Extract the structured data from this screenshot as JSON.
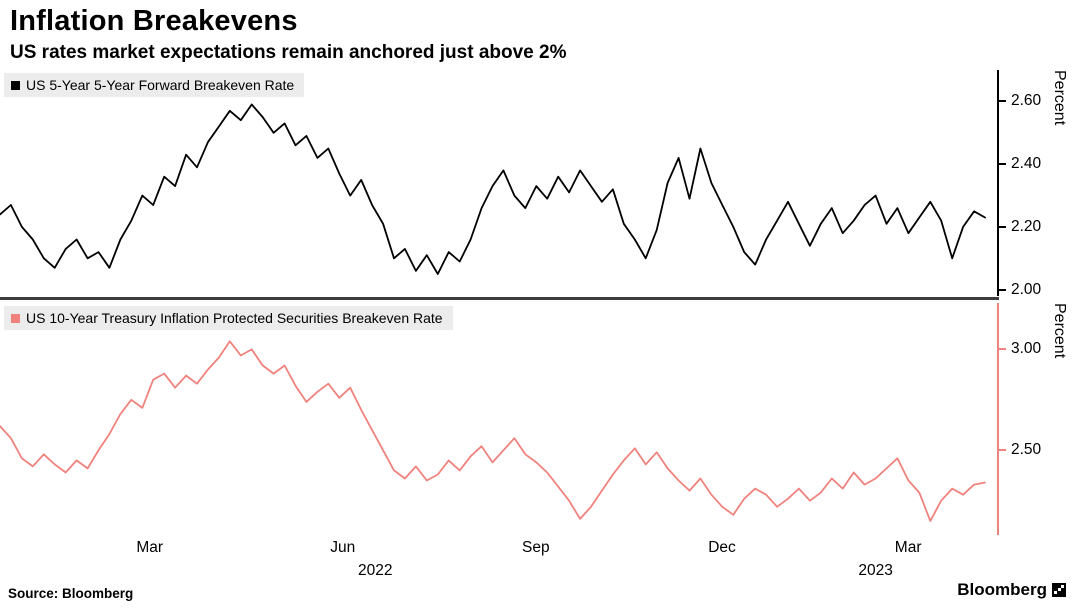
{
  "header": {
    "title": "Inflation Breakevens",
    "subtitle": "US rates market expectations remain anchored just above 2%"
  },
  "footer": {
    "source": "Source: Bloomberg",
    "brand": "Bloomberg"
  },
  "xaxis": {
    "ticks": [
      {
        "label": "Mar",
        "pos": 0.152
      },
      {
        "label": "Jun",
        "pos": 0.348
      },
      {
        "label": "Sep",
        "pos": 0.544
      },
      {
        "label": "Dec",
        "pos": 0.733
      },
      {
        "label": "Mar",
        "pos": 0.922
      }
    ],
    "years": [
      {
        "label": "2022",
        "pos": 0.381
      },
      {
        "label": "2023",
        "pos": 0.889
      }
    ]
  },
  "chart_data": [
    {
      "type": "line",
      "name": "US 5-Year 5-Year Forward Breakeven Rate",
      "color": "#000000",
      "ylabel": "Percent",
      "ylim": [
        1.98,
        2.7
      ],
      "yticks": [
        2.0,
        2.2,
        2.4,
        2.6
      ],
      "x_range": "Jan 2022 - Apr 2023",
      "legend_position": "top-left",
      "grid": false,
      "values": [
        2.24,
        2.27,
        2.2,
        2.16,
        2.1,
        2.07,
        2.13,
        2.16,
        2.1,
        2.12,
        2.07,
        2.16,
        2.22,
        2.3,
        2.27,
        2.36,
        2.33,
        2.43,
        2.39,
        2.47,
        2.52,
        2.57,
        2.54,
        2.59,
        2.55,
        2.5,
        2.53,
        2.46,
        2.49,
        2.42,
        2.45,
        2.37,
        2.3,
        2.35,
        2.27,
        2.21,
        2.1,
        2.13,
        2.06,
        2.11,
        2.05,
        2.12,
        2.09,
        2.16,
        2.26,
        2.33,
        2.38,
        2.3,
        2.26,
        2.33,
        2.29,
        2.36,
        2.31,
        2.38,
        2.33,
        2.28,
        2.32,
        2.21,
        2.16,
        2.1,
        2.19,
        2.34,
        2.42,
        2.29,
        2.45,
        2.34,
        2.27,
        2.2,
        2.12,
        2.08,
        2.16,
        2.22,
        2.28,
        2.21,
        2.14,
        2.21,
        2.26,
        2.18,
        2.22,
        2.27,
        2.3,
        2.21,
        2.26,
        2.18,
        2.23,
        2.28,
        2.22,
        2.1,
        2.2,
        2.25,
        2.23
      ]
    },
    {
      "type": "line",
      "name": "US 10-Year Treasury Inflation Protected Securities Breakeven Rate",
      "color": "#f0827d",
      "ylabel": "Percent",
      "ylim": [
        2.08,
        3.23
      ],
      "yticks": [
        2.5,
        3.0
      ],
      "x_range": "Jan 2022 - Apr 2023",
      "legend_position": "top-left",
      "grid": false,
      "values": [
        2.62,
        2.56,
        2.46,
        2.42,
        2.48,
        2.43,
        2.39,
        2.45,
        2.41,
        2.5,
        2.58,
        2.68,
        2.75,
        2.71,
        2.85,
        2.88,
        2.81,
        2.87,
        2.83,
        2.9,
        2.96,
        3.04,
        2.97,
        3.0,
        2.92,
        2.88,
        2.92,
        2.82,
        2.74,
        2.79,
        2.83,
        2.76,
        2.81,
        2.7,
        2.6,
        2.5,
        2.4,
        2.36,
        2.42,
        2.35,
        2.38,
        2.45,
        2.4,
        2.47,
        2.52,
        2.44,
        2.5,
        2.56,
        2.48,
        2.44,
        2.39,
        2.32,
        2.25,
        2.16,
        2.22,
        2.3,
        2.38,
        2.45,
        2.51,
        2.43,
        2.49,
        2.41,
        2.35,
        2.3,
        2.36,
        2.28,
        2.22,
        2.18,
        2.26,
        2.31,
        2.28,
        2.22,
        2.26,
        2.31,
        2.25,
        2.29,
        2.36,
        2.31,
        2.39,
        2.33,
        2.36,
        2.41,
        2.46,
        2.35,
        2.29,
        2.15,
        2.25,
        2.31,
        2.28,
        2.33,
        2.34
      ]
    }
  ]
}
